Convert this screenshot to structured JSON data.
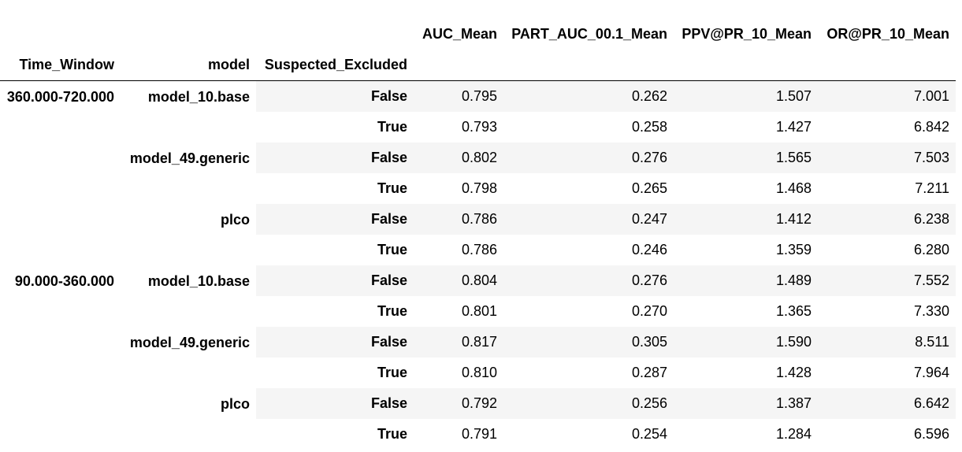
{
  "table": {
    "column_headers": [
      "AUC_Mean",
      "PART_AUC_00.1_Mean",
      "PPV@PR_10_Mean",
      "OR@PR_10_Mean"
    ],
    "index_names": [
      "Time_Window",
      "model",
      "Suspected_Excluded"
    ],
    "groups": [
      {
        "time_window": "360.000-720.000",
        "models": [
          {
            "model": "model_10.base",
            "rows": [
              {
                "excluded": "False",
                "values": [
                  "0.795",
                  "0.262",
                  "1.507",
                  "7.001"
                ]
              },
              {
                "excluded": "True",
                "values": [
                  "0.793",
                  "0.258",
                  "1.427",
                  "6.842"
                ]
              }
            ]
          },
          {
            "model": "model_49.generic",
            "rows": [
              {
                "excluded": "False",
                "values": [
                  "0.802",
                  "0.276",
                  "1.565",
                  "7.503"
                ]
              },
              {
                "excluded": "True",
                "values": [
                  "0.798",
                  "0.265",
                  "1.468",
                  "7.211"
                ]
              }
            ]
          },
          {
            "model": "plco",
            "rows": [
              {
                "excluded": "False",
                "values": [
                  "0.786",
                  "0.247",
                  "1.412",
                  "6.238"
                ]
              },
              {
                "excluded": "True",
                "values": [
                  "0.786",
                  "0.246",
                  "1.359",
                  "6.280"
                ]
              }
            ]
          }
        ]
      },
      {
        "time_window": "90.000-360.000",
        "models": [
          {
            "model": "model_10.base",
            "rows": [
              {
                "excluded": "False",
                "values": [
                  "0.804",
                  "0.276",
                  "1.489",
                  "7.552"
                ]
              },
              {
                "excluded": "True",
                "values": [
                  "0.801",
                  "0.270",
                  "1.365",
                  "7.330"
                ]
              }
            ]
          },
          {
            "model": "model_49.generic",
            "rows": [
              {
                "excluded": "False",
                "values": [
                  "0.817",
                  "0.305",
                  "1.590",
                  "8.511"
                ]
              },
              {
                "excluded": "True",
                "values": [
                  "0.810",
                  "0.287",
                  "1.428",
                  "7.964"
                ]
              }
            ]
          },
          {
            "model": "plco",
            "rows": [
              {
                "excluded": "False",
                "values": [
                  "0.792",
                  "0.256",
                  "1.387",
                  "6.642"
                ]
              },
              {
                "excluded": "True",
                "values": [
                  "0.791",
                  "0.254",
                  "1.284",
                  "6.596"
                ]
              }
            ]
          }
        ]
      }
    ]
  }
}
